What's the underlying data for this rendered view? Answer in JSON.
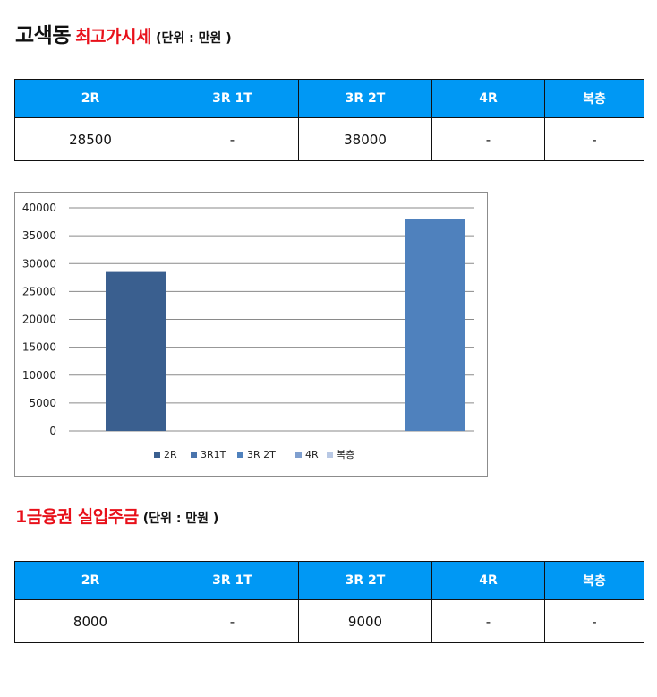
{
  "heading1": {
    "place": "고색동",
    "title": "최고가시세",
    "unit": "(단위 : 만원 )"
  },
  "table1": {
    "headers": [
      "2R",
      "3R 1T",
      "3R 2T",
      "4R",
      "복층"
    ],
    "values": [
      "28500",
      "-",
      "38000",
      "-",
      "-"
    ]
  },
  "heading2": {
    "title": "1금융권 실입주금",
    "unit": "(단위 : 만원 )"
  },
  "table2": {
    "headers": [
      "2R",
      "3R 1T",
      "3R 2T",
      "4R",
      "복층"
    ],
    "values": [
      "8000",
      "-",
      "9000",
      "-",
      "-"
    ]
  },
  "colors": {
    "header_bg": "#0098f4",
    "accent_red": "#e8101a"
  },
  "chart_data": {
    "type": "bar",
    "categories": [
      "2R",
      "3R1T",
      "3R 2T",
      "4R",
      "복층"
    ],
    "values": [
      28500,
      null,
      38000,
      null,
      null
    ],
    "colors": [
      "#3a5f8f",
      "#4a74ac",
      "#4f81bd",
      "#7f9fcf",
      "#b8c8e4"
    ],
    "ylim": [
      0,
      40000
    ],
    "yticks": [
      0,
      5000,
      10000,
      15000,
      20000,
      25000,
      30000,
      35000,
      40000
    ],
    "grid": true,
    "legend": "bottom",
    "title": "",
    "xlabel": "",
    "ylabel": ""
  }
}
